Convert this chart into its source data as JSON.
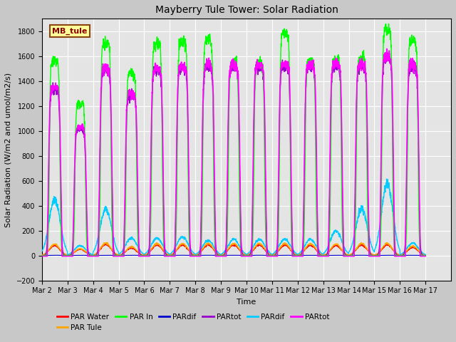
{
  "title": "Mayberry Tule Tower: Solar Radiation",
  "xlabel": "Time",
  "ylabel": "Solar Radiation (W/m2 and umol/m2/s)",
  "ylim": [
    -200,
    1900
  ],
  "yticks": [
    -200,
    0,
    200,
    400,
    600,
    800,
    1000,
    1200,
    1400,
    1600,
    1800
  ],
  "x_tick_labels": [
    "Mar 2",
    "Mar 3",
    "Mar 4",
    "Mar 5",
    "Mar 6",
    "Mar 7",
    "Mar 8",
    "Mar 9",
    "Mar 10",
    "Mar 11",
    "Mar 12",
    "Mar 13",
    "Mar 14",
    "Mar 15",
    "Mar 16",
    "Mar 17"
  ],
  "n_days": 15,
  "day_peaks_green": [
    1560,
    1220,
    1700,
    1460,
    1700,
    1720,
    1730,
    1540,
    1540,
    1780,
    1560,
    1570,
    1580,
    1810,
    1720
  ],
  "day_peaks_magenta": [
    1350,
    1030,
    1500,
    1300,
    1500,
    1520,
    1530,
    1530,
    1530,
    1540,
    1530,
    1540,
    1540,
    1600,
    1530
  ],
  "cyan_peaks": [
    450,
    80,
    370,
    140,
    140,
    150,
    120,
    130,
    130,
    130,
    130,
    200,
    380,
    580,
    100
  ],
  "orange_peaks": [
    90,
    55,
    100,
    70,
    95,
    95,
    95,
    95,
    95,
    95,
    95,
    90,
    95,
    95,
    75
  ],
  "red_peaks": [
    80,
    50,
    90,
    60,
    85,
    85,
    85,
    85,
    85,
    85,
    85,
    80,
    85,
    85,
    65
  ],
  "plot_bg": "#e8e8e8",
  "grid_color": "#ffffff",
  "series_colors": {
    "PAR Water": "#ff0000",
    "PAR Tule": "#ffa500",
    "PAR In": "#00ff00",
    "PARdif_blue": "#0000cd",
    "PARtot_purple": "#9900cc",
    "PARdif_cyan": "#00ccff",
    "PARtot_magenta": "#ff00ff"
  },
  "legend_entries": [
    {
      "label": "PAR Water",
      "color": "#ff0000"
    },
    {
      "label": "PAR Tule",
      "color": "#ffa500"
    },
    {
      "label": "PAR In",
      "color": "#00ff00"
    },
    {
      "label": "PARdif",
      "color": "#0000cd"
    },
    {
      "label": "PARtot",
      "color": "#9900cc"
    },
    {
      "label": "PARdif",
      "color": "#00ccff"
    },
    {
      "label": "PARtot",
      "color": "#ff00ff"
    }
  ]
}
